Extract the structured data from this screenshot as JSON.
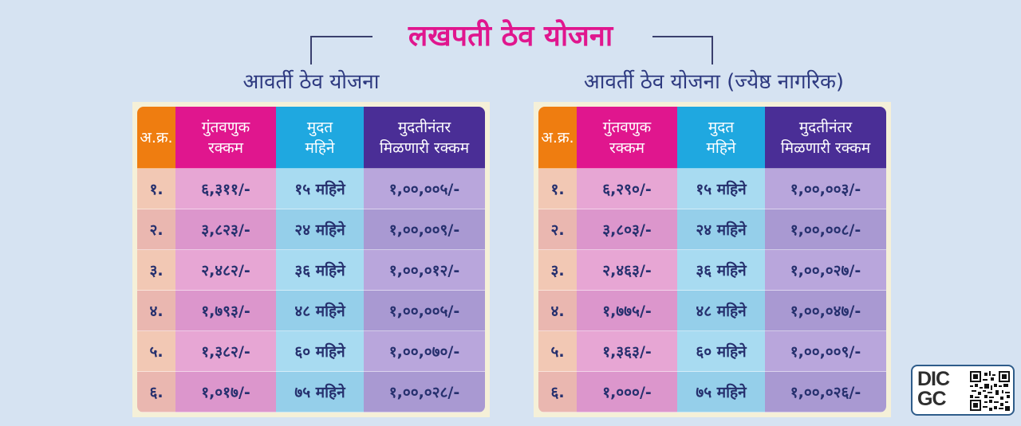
{
  "title": "लखपती ठेव योजना",
  "left": {
    "subtitle": "आवर्ती ठेव योजना",
    "headers": {
      "sr": "अ.क्र.",
      "amount_l1": "गुंतवणुक",
      "amount_l2": "रक्कम",
      "duration_l1": "मुदत",
      "duration_l2": "महिने",
      "maturity_l1": "मुदतीनंतर",
      "maturity_l2": "मिळणारी रक्कम"
    },
    "rows": [
      {
        "sr": "१.",
        "amount": "६,३११/-",
        "duration": "१५ महिने",
        "maturity": "१,००,००५/-"
      },
      {
        "sr": "२.",
        "amount": "३,८२३/-",
        "duration": "२४ महिने",
        "maturity": "१,००,००९/-"
      },
      {
        "sr": "३.",
        "amount": "२,४८२/-",
        "duration": "३६ महिने",
        "maturity": "१,००,०१२/-"
      },
      {
        "sr": "४.",
        "amount": "१,७९३/-",
        "duration": "४८ महिने",
        "maturity": "१,००,००५/-"
      },
      {
        "sr": "५.",
        "amount": "१,३८२/-",
        "duration": "६० महिने",
        "maturity": "१,००,०७०/-"
      },
      {
        "sr": "६.",
        "amount": "१,०१७/-",
        "duration": "७५ महिने",
        "maturity": "१,००,०२८/-"
      }
    ]
  },
  "right": {
    "subtitle": "आवर्ती ठेव योजना (ज्येष्ठ नागरिक)",
    "headers": {
      "sr": "अ.क्र.",
      "amount_l1": "गुंतवणुक",
      "amount_l2": "रक्कम",
      "duration_l1": "मुदत",
      "duration_l2": "महिने",
      "maturity_l1": "मुदतीनंतर",
      "maturity_l2": "मिळणारी रक्कम"
    },
    "rows": [
      {
        "sr": "१.",
        "amount": "६,२९०/-",
        "duration": "१५ महिने",
        "maturity": "१,००,००३/-"
      },
      {
        "sr": "२.",
        "amount": "३,८०३/-",
        "duration": "२४ महिने",
        "maturity": "१,००,००८/-"
      },
      {
        "sr": "३.",
        "amount": "२,४६३/-",
        "duration": "३६ महिने",
        "maturity": "१,००,०२७/-"
      },
      {
        "sr": "४.",
        "amount": "१,७७५/-",
        "duration": "४८ महिने",
        "maturity": "१,००,०४७/-"
      },
      {
        "sr": "५.",
        "amount": "१,३६३/-",
        "duration": "६० महिने",
        "maturity": "१,००,००९/-"
      },
      {
        "sr": "६.",
        "amount": "१,०००/-",
        "duration": "७५ महिने",
        "maturity": "१,००,०२६/-"
      }
    ]
  },
  "logo": {
    "text_l1": "DIC",
    "text_l2": "GC",
    "qr_icon": "qr-code-icon"
  },
  "colors": {
    "title": "#e0168e",
    "subtitle": "#2e3a80",
    "sr_header": "#ef7d10",
    "amount_header": "#e0168e",
    "duration_header": "#1fa8e0",
    "maturity_header": "#4a2e96"
  }
}
